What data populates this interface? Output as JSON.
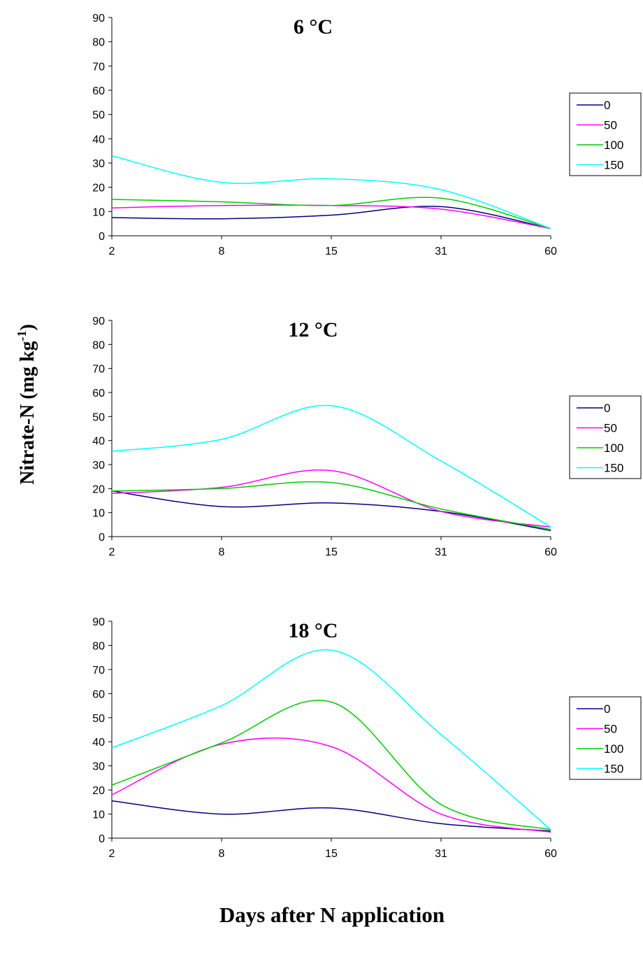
{
  "figure": {
    "ylabel_main": "Nitrate-N (mg kg",
    "ylabel_sup": "-1",
    "ylabel_close": ")",
    "xlabel": "Days after N application"
  },
  "chart_data": [
    {
      "type": "line",
      "title": "6 °C",
      "x": [
        2,
        8,
        15,
        31,
        60
      ],
      "ylim": [
        0,
        90
      ],
      "yticks": [
        0,
        10,
        20,
        30,
        40,
        50,
        60,
        70,
        80,
        90
      ],
      "legend_position": "right",
      "series": [
        {
          "name": "0",
          "color": "#000080",
          "values": [
            7.5,
            7,
            8.5,
            12,
            3
          ]
        },
        {
          "name": "50",
          "color": "#ff00ff",
          "values": [
            11.5,
            12.5,
            12.5,
            11,
            3
          ]
        },
        {
          "name": "100",
          "color": "#00cc00",
          "values": [
            15,
            14,
            12.5,
            15.5,
            3
          ]
        },
        {
          "name": "150",
          "color": "#00ffff",
          "values": [
            33,
            22,
            23.5,
            19,
            3
          ]
        }
      ]
    },
    {
      "type": "line",
      "title": "12 °C",
      "x": [
        2,
        8,
        15,
        31,
        60
      ],
      "ylim": [
        0,
        90
      ],
      "yticks": [
        0,
        10,
        20,
        30,
        40,
        50,
        60,
        70,
        80,
        90
      ],
      "legend_position": "right",
      "series": [
        {
          "name": "0",
          "color": "#000080",
          "values": [
            19,
            12.5,
            14,
            10.5,
            2.5
          ]
        },
        {
          "name": "50",
          "color": "#ff00ff",
          "values": [
            18,
            20.5,
            27.5,
            10.5,
            4
          ]
        },
        {
          "name": "100",
          "color": "#00cc00",
          "values": [
            19,
            20,
            22.5,
            11.5,
            3
          ]
        },
        {
          "name": "150",
          "color": "#00ffff",
          "values": [
            35.5,
            40.5,
            54.5,
            31.5,
            4
          ]
        }
      ]
    },
    {
      "type": "line",
      "title": "18 °C",
      "x": [
        2,
        8,
        15,
        31,
        60
      ],
      "ylim": [
        0,
        90
      ],
      "yticks": [
        0,
        10,
        20,
        30,
        40,
        50,
        60,
        70,
        80,
        90
      ],
      "legend_position": "right",
      "series": [
        {
          "name": "0",
          "color": "#000080",
          "values": [
            15.5,
            10,
            12.5,
            6,
            3
          ]
        },
        {
          "name": "50",
          "color": "#ff00ff",
          "values": [
            18,
            39,
            38,
            10,
            2.5
          ]
        },
        {
          "name": "100",
          "color": "#00cc00",
          "values": [
            22,
            39.5,
            56.5,
            14,
            3.5
          ]
        },
        {
          "name": "150",
          "color": "#00ffff",
          "values": [
            37.5,
            55,
            78,
            43,
            3.5
          ]
        }
      ]
    }
  ]
}
